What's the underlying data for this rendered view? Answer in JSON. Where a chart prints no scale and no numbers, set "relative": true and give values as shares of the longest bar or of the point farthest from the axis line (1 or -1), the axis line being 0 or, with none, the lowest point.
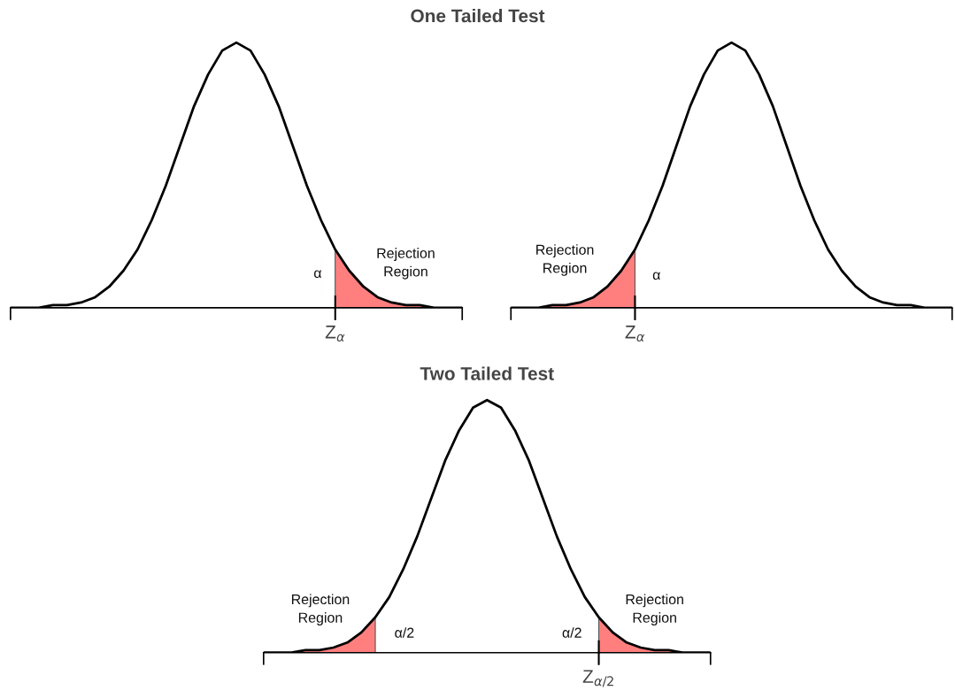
{
  "chart_data": [
    {
      "type": "line",
      "title": "One Tailed Test",
      "relative": true,
      "categories": [
        null,
        null,
        null,
        null,
        null,
        null,
        null,
        null,
        null,
        null,
        null,
        null,
        null,
        null,
        null,
        null,
        null,
        null,
        null,
        null,
        null,
        null,
        null,
        null,
        null,
        null,
        null,
        null,
        null,
        null,
        null,
        null,
        null
      ],
      "series": [
        {
          "type": "area",
          "color": "#ff7f7f",
          "values": [
            null,
            null,
            null,
            null,
            null,
            null,
            null,
            null,
            null,
            null,
            null,
            null,
            null,
            null,
            null,
            null,
            null,
            null,
            null,
            null,
            null,
            null,
            null,
            0.22,
            0.14,
            0.08,
            0.04,
            0.02,
            0.01,
            0.01,
            0,
            0,
            0
          ]
        },
        {
          "type": "line",
          "color": "#000000",
          "values": [
            0,
            0,
            0,
            0.01,
            0.01,
            0.02,
            0.04,
            0.08,
            0.14,
            0.22,
            0.33,
            0.46,
            0.61,
            0.76,
            0.88,
            0.97,
            1,
            0.97,
            0.88,
            0.76,
            0.61,
            0.46,
            0.33,
            0.22,
            0.14,
            0.08,
            0.04,
            0.02,
            0.01,
            0.01,
            0,
            0,
            0
          ]
        }
      ],
      "annotations": [
        "α",
        "Rejection\nRegion",
        "Z$_{α}$"
      ]
    },
    {
      "type": "line",
      "relative": true,
      "categories": [
        null,
        null,
        null,
        null,
        null,
        null,
        null,
        null,
        null,
        null,
        null,
        null,
        null,
        null,
        null,
        null,
        null,
        null,
        null,
        null,
        null,
        null,
        null,
        null,
        null,
        null,
        null,
        null,
        null,
        null,
        null,
        null,
        null
      ],
      "series": [
        {
          "type": "area",
          "color": "#ff7f7f",
          "values": [
            0,
            0,
            0,
            0.01,
            0.01,
            0.02,
            0.04,
            0.08,
            0.14,
            0.22,
            null,
            null,
            null,
            null,
            null,
            null,
            null,
            null,
            null,
            null,
            null,
            null,
            null,
            null,
            null,
            null,
            null,
            null,
            null,
            null,
            null,
            null,
            null
          ]
        },
        {
          "type": "line",
          "color": "#000000",
          "values": [
            0,
            0,
            0,
            0.01,
            0.01,
            0.02,
            0.04,
            0.08,
            0.14,
            0.22,
            0.33,
            0.46,
            0.61,
            0.76,
            0.88,
            0.97,
            1,
            0.97,
            0.88,
            0.76,
            0.61,
            0.46,
            0.33,
            0.22,
            0.14,
            0.08,
            0.04,
            0.02,
            0.01,
            0.01,
            0,
            0,
            0
          ]
        }
      ],
      "annotations": [
        "Rejection\nRegion",
        "α",
        "Z$_{α}$"
      ]
    },
    {
      "type": "line",
      "title": "Two Tailed Test",
      "relative": true,
      "categories": [
        null,
        null,
        null,
        null,
        null,
        null,
        null,
        null,
        null,
        null,
        null,
        null,
        null,
        null,
        null,
        null,
        null,
        null,
        null,
        null,
        null,
        null,
        null,
        null,
        null,
        null,
        null,
        null,
        null,
        null,
        null,
        null,
        null
      ],
      "series": [
        {
          "type": "area",
          "color": "#ff7f7f",
          "values": [
            0,
            0,
            0,
            0.01,
            0.01,
            0.02,
            0.04,
            0.08,
            0.14,
            null,
            null,
            null,
            null,
            null,
            null,
            null,
            null,
            null,
            null,
            null,
            null,
            null,
            null,
            null,
            null,
            null,
            null,
            null,
            null,
            null,
            null,
            null,
            null
          ]
        },
        {
          "type": "area",
          "color": "#ff7f7f",
          "values": [
            null,
            null,
            null,
            null,
            null,
            null,
            null,
            null,
            null,
            null,
            null,
            null,
            null,
            null,
            null,
            null,
            null,
            null,
            null,
            null,
            null,
            null,
            null,
            null,
            0.14,
            0.08,
            0.04,
            0.02,
            0.01,
            0.01,
            0,
            0,
            0
          ]
        },
        {
          "type": "line",
          "color": "#000000",
          "values": [
            0,
            0,
            0,
            0.01,
            0.01,
            0.02,
            0.04,
            0.08,
            0.14,
            0.22,
            0.33,
            0.46,
            0.61,
            0.76,
            0.88,
            0.97,
            1,
            0.97,
            0.88,
            0.76,
            0.61,
            0.46,
            0.33,
            0.22,
            0.14,
            0.08,
            0.04,
            0.02,
            0.01,
            0.01,
            0,
            0,
            0
          ]
        }
      ],
      "annotations": [
        "Rejection\nRegion",
        "α/2",
        "α/2",
        "Rejection\nRegion",
        "Z$_{α/2}$"
      ]
    }
  ]
}
